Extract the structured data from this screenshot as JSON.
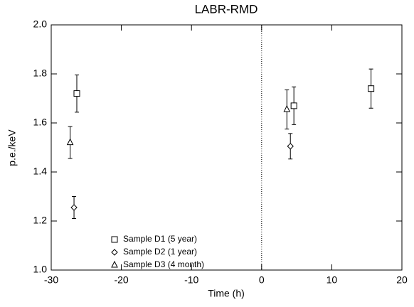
{
  "chart_data": {
    "type": "scatter",
    "title": "LABR-RMD",
    "x_label": "Time (h)",
    "y_label": "p.e./keV",
    "xlim": [
      -30,
      20
    ],
    "ylim": [
      1.0,
      2.0
    ],
    "xticks": [
      -30,
      -20,
      -10,
      0,
      10,
      20
    ],
    "yticks": [
      {
        "value": 1.0,
        "label": "1.0"
      },
      1.2,
      1.4,
      1.6,
      1.8,
      {
        "value": 2.0,
        "label": "2.0"
      }
    ],
    "grid": false,
    "vline_x": 0,
    "legend": "lower left",
    "series": [
      {
        "name": "Sample D1 (5 year)",
        "marker": "square",
        "color": "#000000",
        "x": [
          -26.35,
          4.6,
          15.6
        ],
        "values": [
          1.72,
          1.67,
          1.74
        ],
        "errors": [
          0.076,
          0.077,
          0.08
        ]
      },
      {
        "name": "Sample D2 (1 year)",
        "marker": "diamond",
        "color": "#000000",
        "x": [
          -26.75,
          4.1
        ],
        "values": [
          1.255,
          1.505
        ],
        "errors": [
          0.045,
          0.052
        ]
      },
      {
        "name": "Sample D3 (4 month)",
        "marker": "triangle",
        "color": "#000000",
        "x": [
          -27.3,
          3.6
        ],
        "values": [
          1.52,
          1.655
        ],
        "errors": [
          0.065,
          0.08
        ]
      }
    ]
  }
}
